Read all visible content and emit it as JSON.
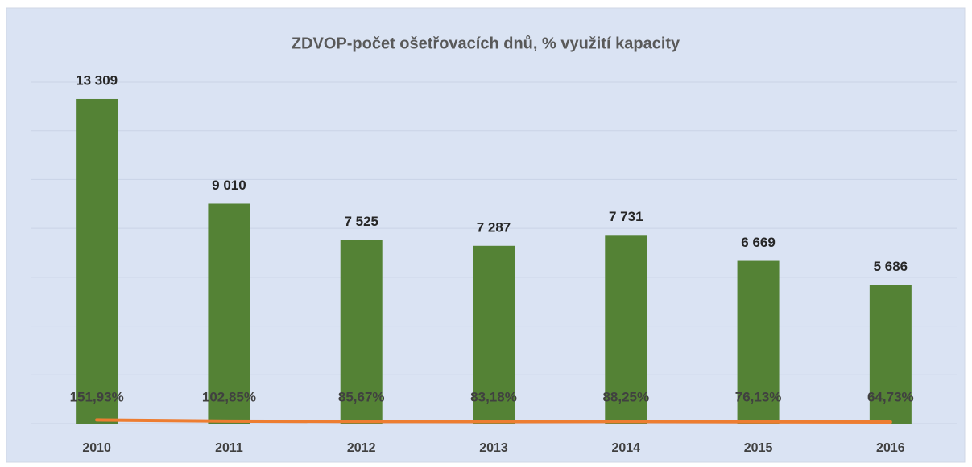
{
  "chart_data": {
    "type": "bar",
    "title": "ZDVOP-počet ošetřovacích dnů, % využití kapacity",
    "categories": [
      "2010",
      "2011",
      "2012",
      "2013",
      "2014",
      "2015",
      "2016"
    ],
    "series": [
      {
        "type": "bar",
        "color": "#548235",
        "values": [
          13309,
          9010,
          7525,
          7287,
          7731,
          6669,
          5686
        ],
        "value_labels": [
          "13 309",
          "9 010",
          "7 525",
          "7 287",
          "7 731",
          "6 669",
          "5 686"
        ]
      },
      {
        "type": "line",
        "color": "#ed7d31",
        "values": [
          151.93,
          102.85,
          85.67,
          83.18,
          88.25,
          76.13,
          64.73
        ],
        "value_labels": [
          "151,93%",
          "102,85%",
          "85,67%",
          "83,18%",
          "88,25%",
          "76,13%",
          "64,73%"
        ]
      }
    ],
    "ylim": [
      0,
      14000
    ],
    "yticks": [
      0,
      2000,
      4000,
      6000,
      8000,
      10000,
      12000,
      14000
    ],
    "grid": true
  }
}
